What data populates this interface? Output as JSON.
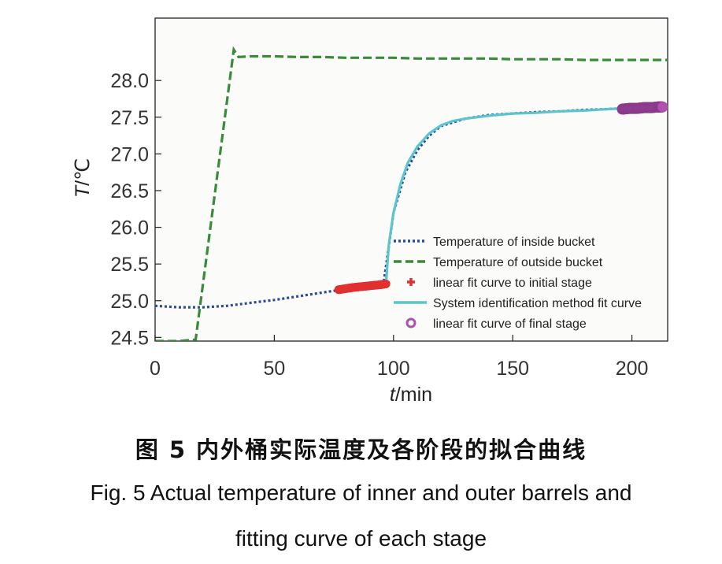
{
  "caption": {
    "cn": "图 5   内外桶实际温度及各阶段的拟合曲线",
    "en_line1": "Fig. 5    Actual temperature of inner and outer barrels and",
    "en_line2": "fitting curve of each stage"
  },
  "chart_data": {
    "type": "line",
    "title": "",
    "xlabel_var": "t",
    "xlabel_unit": "/min",
    "ylabel_var": "T",
    "ylabel_unit": "/℃",
    "xlim": [
      0,
      215
    ],
    "ylim": [
      24.45,
      28.85
    ],
    "xticks": [
      0,
      50,
      100,
      150,
      200
    ],
    "yticks": [
      24.5,
      25.0,
      25.5,
      26.0,
      26.5,
      27.0,
      27.5,
      28.0
    ],
    "ytick_labels": [
      "24.5",
      "25.0",
      "25.5",
      "26.0",
      "26.5",
      "27.0",
      "27.5",
      "28.0"
    ],
    "grid": false,
    "legend_position": "lower-right",
    "colors": {
      "inside": "#2b4a9a",
      "outside": "#3a8a3a",
      "initial_fit": "#e03030",
      "sysid_fit": "#5cc4cc",
      "final_fit": "#b050b0"
    },
    "series": [
      {
        "name": "Temperature of inside bucket",
        "style": "dotted",
        "x": [
          0,
          10,
          20,
          30,
          40,
          50,
          60,
          70,
          80,
          90,
          95,
          96,
          97,
          100,
          105,
          110,
          115,
          120,
          130,
          140,
          150,
          160,
          170,
          180,
          190,
          195
        ],
        "y": [
          24.93,
          24.91,
          24.91,
          24.93,
          24.97,
          25.01,
          25.06,
          25.11,
          25.16,
          25.21,
          25.23,
          25.28,
          25.5,
          26.2,
          26.75,
          27.05,
          27.25,
          27.38,
          27.48,
          27.53,
          27.55,
          27.57,
          27.58,
          27.6,
          27.61,
          27.62
        ]
      },
      {
        "name": "Temperature of outside bucket",
        "style": "dashed",
        "x": [
          0,
          10,
          17,
          33,
          35,
          40,
          50,
          60,
          70,
          80,
          90,
          100,
          110,
          120,
          130,
          140,
          150,
          160,
          170,
          180,
          190,
          200,
          210,
          215
        ],
        "y": [
          24.45,
          24.45,
          24.47,
          28.42,
          28.32,
          28.33,
          28.33,
          28.32,
          28.32,
          28.31,
          28.31,
          28.31,
          28.3,
          28.3,
          28.3,
          28.3,
          28.29,
          28.29,
          28.29,
          28.28,
          28.28,
          28.28,
          28.28,
          28.28
        ]
      },
      {
        "name": "linear fit curve to initial stage",
        "style": "markers",
        "x": [
          77,
          80,
          83,
          86,
          89,
          92,
          95,
          97
        ],
        "y": [
          25.15,
          25.165,
          25.18,
          25.19,
          25.2,
          25.21,
          25.22,
          25.23
        ]
      },
      {
        "name": "System identification method fit curve",
        "style": "solid",
        "x": [
          97,
          98,
          100,
          103,
          106,
          110,
          115,
          120,
          125,
          130,
          140,
          150,
          160,
          170,
          180,
          190,
          196
        ],
        "y": [
          25.3,
          25.75,
          26.2,
          26.6,
          26.88,
          27.1,
          27.28,
          27.39,
          27.45,
          27.48,
          27.52,
          27.55,
          27.56,
          27.58,
          27.59,
          27.61,
          27.62
        ]
      },
      {
        "name": "linear fit curve of final stage",
        "style": "markers",
        "x": [
          196,
          199,
          202,
          205,
          208,
          211,
          213
        ],
        "y": [
          27.61,
          27.62,
          27.62,
          27.63,
          27.63,
          27.64,
          27.64
        ]
      }
    ]
  }
}
